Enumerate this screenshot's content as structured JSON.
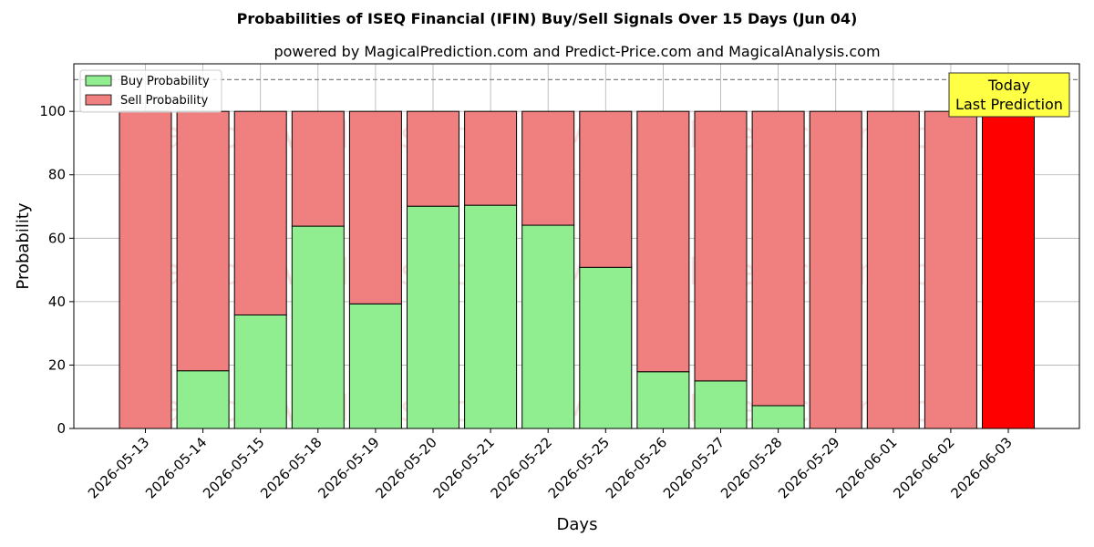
{
  "chart_data": {
    "type": "bar",
    "stacked": true,
    "title": "Probabilities of ISEQ Financial (IFIN) Buy/Sell Signals Over 15 Days (Jun 04)",
    "subtitle": "powered by MagicalPrediction.com and Predict-Price.com and MagicalAnalysis.com",
    "xlabel": "Days",
    "ylabel": "Probability",
    "ylim": [
      0,
      115
    ],
    "yticks": [
      0,
      20,
      40,
      60,
      80,
      100
    ],
    "grid": true,
    "legend_position": "top-left",
    "reference_line": 110,
    "categories": [
      "2026-05-13",
      "2026-05-14",
      "2026-05-15",
      "2026-05-18",
      "2026-05-19",
      "2026-05-20",
      "2026-05-21",
      "2026-05-22",
      "2026-05-25",
      "2026-05-26",
      "2026-05-27",
      "2026-05-28",
      "2026-05-29",
      "2026-06-01",
      "2026-06-02",
      "2026-06-03"
    ],
    "series": [
      {
        "name": "Buy Probability",
        "color": "#90ee90",
        "values": [
          0,
          18.2,
          35.8,
          63.8,
          39.3,
          70.1,
          70.4,
          64.1,
          50.8,
          17.9,
          15.0,
          7.2,
          0,
          0,
          0,
          0
        ]
      },
      {
        "name": "Sell Probability",
        "color": "#f08080",
        "values": [
          100,
          81.8,
          64.2,
          36.2,
          60.7,
          29.9,
          29.6,
          35.9,
          49.2,
          82.1,
          85.0,
          92.8,
          100,
          100,
          100,
          100
        ]
      }
    ],
    "highlight": {
      "category": "2026-06-03",
      "color": "#ff0000",
      "label_line1": "Today",
      "label_line2": "Last Prediction",
      "label_color": "#ffff44"
    },
    "watermarks": [
      "MagicalAnalysis.com",
      "MagicalPrediction.com"
    ]
  }
}
